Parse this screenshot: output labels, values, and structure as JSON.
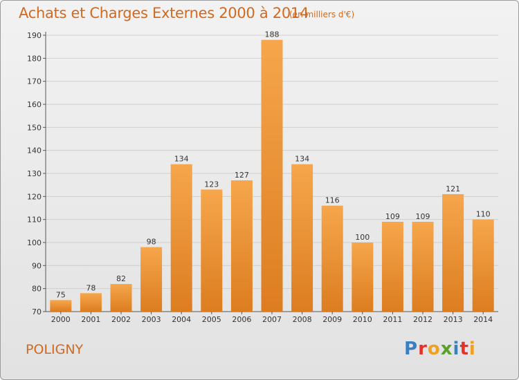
{
  "header": {
    "title": "Achats et Charges Externes 2000 à 2014",
    "subtitle": "(en milliers d'€)"
  },
  "footer": {
    "commune": "POLIGNY",
    "logo_letters": [
      "P",
      "r",
      "o",
      "x",
      "i",
      "t",
      "i"
    ],
    "logo_colors": [
      "#3a7fc1",
      "#e4322b",
      "#f0a020",
      "#5aa02c",
      "#3a7fc1",
      "#e4322b",
      "#f0a020"
    ]
  },
  "colors": {
    "bar": "#f39a3e",
    "bar_dark": "#d97b1f",
    "grid": "#cfcfcf"
  },
  "chart_data": {
    "type": "bar",
    "categories": [
      "2000",
      "2001",
      "2002",
      "2003",
      "2004",
      "2005",
      "2006",
      "2007",
      "2008",
      "2009",
      "2010",
      "2011",
      "2012",
      "2013",
      "2014"
    ],
    "values": [
      75,
      78,
      82,
      98,
      134,
      123,
      127,
      188,
      134,
      116,
      100,
      109,
      109,
      121,
      110
    ],
    "ylim": [
      70,
      190
    ],
    "yticks": [
      70,
      80,
      90,
      100,
      110,
      120,
      130,
      140,
      150,
      160,
      170,
      180,
      190
    ],
    "grid": true
  }
}
